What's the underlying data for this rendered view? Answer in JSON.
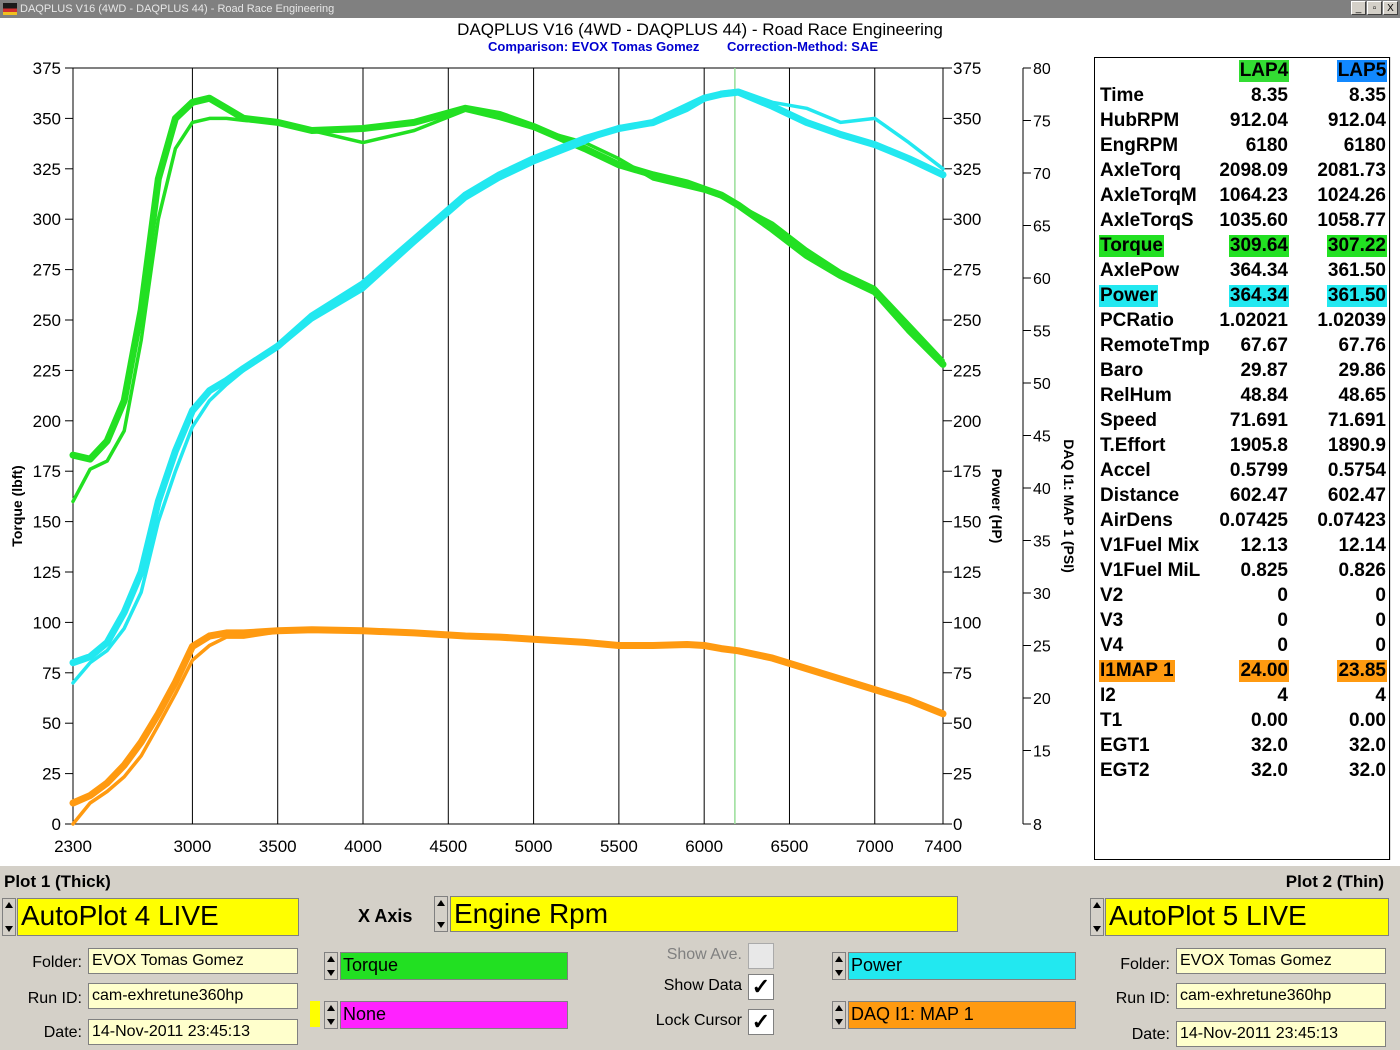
{
  "window": {
    "title": "DAQPLUS V16 (4WD - DAQPLUS 44) - Road Race Engineering",
    "buttons": [
      "_",
      "▫",
      "X"
    ]
  },
  "header": {
    "title": "DAQPLUS V16 (4WD - DAQPLUS 44) - Road Race Engineering",
    "comparison": "Comparison: EVOX Tomas Gomez",
    "correction": "Correction-Method: SAE"
  },
  "colors": {
    "torque": "#22e022",
    "power": "#22e8f0",
    "map": "#ff9a10",
    "none": "#ff22ff",
    "lap4": "#33dd33",
    "lap5": "#1188ff",
    "cursor": "#99dd99",
    "field": "#ffff00"
  },
  "chart_data": {
    "type": "line",
    "x_label": "",
    "xlim": [
      2300,
      7400
    ],
    "x_ticks": [
      2300,
      3000,
      3500,
      4000,
      4500,
      5000,
      5500,
      6000,
      6500,
      7000,
      7400
    ],
    "cursor_x": 6180,
    "left_axis": {
      "label": "Torque (lbft)",
      "range": [
        0,
        375
      ],
      "ticks": [
        0,
        25,
        50,
        75,
        100,
        125,
        150,
        175,
        200,
        225,
        250,
        275,
        300,
        325,
        350,
        375
      ]
    },
    "right_axis": {
      "label": "Power (HP)",
      "range": [
        0,
        375
      ],
      "ticks": [
        0,
        25,
        50,
        75,
        100,
        125,
        150,
        175,
        200,
        225,
        250,
        275,
        300,
        325,
        350,
        375
      ]
    },
    "right_axis2": {
      "label": "DAQ I1: MAP 1 (PSI)",
      "range": [
        8,
        80
      ],
      "ticks": [
        8,
        15,
        20,
        25,
        30,
        35,
        40,
        45,
        50,
        55,
        60,
        65,
        70,
        75,
        80
      ]
    },
    "series": [
      {
        "name": "Torque",
        "run": "AutoPlot 4 LIVE",
        "thickness": "thick",
        "color": "#22e022",
        "axis": "left",
        "x": [
          2300,
          2400,
          2500,
          2600,
          2700,
          2800,
          2900,
          3000,
          3100,
          3200,
          3300,
          3500,
          3700,
          4000,
          4300,
          4600,
          4800,
          5000,
          5300,
          5500,
          5700,
          5900,
          6000,
          6100,
          6200,
          6400,
          6600,
          6800,
          7000,
          7200,
          7400
        ],
        "y": [
          183,
          181,
          190,
          210,
          255,
          320,
          350,
          358,
          360,
          355,
          350,
          348,
          344,
          345,
          348,
          355,
          352,
          346,
          335,
          327,
          322,
          318,
          315,
          312,
          307,
          295,
          282,
          272,
          264,
          245,
          228
        ]
      },
      {
        "name": "Torque",
        "run": "AutoPlot 5 LIVE",
        "thickness": "thin",
        "color": "#22e022",
        "axis": "left",
        "x": [
          2300,
          2400,
          2500,
          2600,
          2700,
          2800,
          2900,
          3000,
          3100,
          3200,
          3300,
          3500,
          3700,
          4000,
          4300,
          4600,
          4800,
          5000,
          5300,
          5500,
          5700,
          5900,
          6000,
          6100,
          6200,
          6400,
          6600,
          6800,
          7000,
          7200,
          7400
        ],
        "y": [
          160,
          176,
          180,
          195,
          240,
          300,
          335,
          348,
          350,
          350,
          349,
          348,
          344,
          338,
          344,
          354,
          350,
          345,
          338,
          330,
          320,
          316,
          314,
          311,
          307,
          298,
          285,
          274,
          266,
          248,
          230
        ]
      },
      {
        "name": "Power",
        "run": "AutoPlot 4 LIVE",
        "thickness": "thick",
        "color": "#22e8f0",
        "axis": "right",
        "x": [
          2300,
          2400,
          2500,
          2600,
          2700,
          2800,
          2900,
          3000,
          3100,
          3200,
          3300,
          3500,
          3700,
          4000,
          4300,
          4600,
          4800,
          5000,
          5300,
          5500,
          5700,
          5900,
          6000,
          6100,
          6200,
          6400,
          6600,
          6800,
          7000,
          7200,
          7400
        ],
        "y": [
          80,
          83,
          90,
          105,
          125,
          160,
          185,
          205,
          215,
          220,
          226,
          237,
          252,
          268,
          290,
          312,
          322,
          330,
          340,
          345,
          348,
          356,
          360,
          362,
          363,
          356,
          348,
          342,
          337,
          330,
          322
        ]
      },
      {
        "name": "Power",
        "run": "AutoPlot 5 LIVE",
        "thickness": "thin",
        "color": "#22e8f0",
        "axis": "right",
        "x": [
          2300,
          2400,
          2500,
          2600,
          2700,
          2800,
          2900,
          3000,
          3100,
          3200,
          3300,
          3500,
          3700,
          4000,
          4300,
          4600,
          4800,
          5000,
          5300,
          5500,
          5700,
          5900,
          6000,
          6100,
          6200,
          6400,
          6600,
          6800,
          7000,
          7200,
          7400
        ],
        "y": [
          70,
          80,
          86,
          97,
          115,
          150,
          175,
          197,
          210,
          218,
          225,
          236,
          250,
          265,
          288,
          310,
          320,
          328,
          338,
          346,
          347,
          354,
          359,
          363,
          364,
          358,
          355,
          348,
          350,
          338,
          325
        ]
      },
      {
        "name": "DAQ I1: MAP 1",
        "run": "AutoPlot 4 LIVE",
        "thickness": "thick",
        "color": "#ff9a10",
        "axis": "right2",
        "x": [
          2300,
          2400,
          2500,
          2600,
          2700,
          2800,
          2900,
          3000,
          3100,
          3200,
          3300,
          3500,
          3700,
          4000,
          4300,
          4600,
          4800,
          5000,
          5300,
          5500,
          5700,
          5900,
          6000,
          6100,
          6200,
          6400,
          6600,
          6800,
          7000,
          7200,
          7400
        ],
        "y": [
          10,
          10.7,
          11.9,
          13.6,
          15.8,
          18.5,
          21.5,
          24.9,
          25.9,
          26.2,
          26.2,
          26.4,
          26.5,
          26.4,
          26.2,
          25.9,
          25.8,
          25.6,
          25.3,
          25.0,
          25.0,
          25.1,
          25.0,
          24.7,
          24.5,
          23.8,
          22.8,
          21.8,
          20.8,
          19.8,
          18.5
        ]
      },
      {
        "name": "DAQ I1: MAP 1",
        "run": "AutoPlot 5 LIVE",
        "thickness": "thin",
        "color": "#ff9a10",
        "axis": "right2",
        "x": [
          2300,
          2400,
          2500,
          2600,
          2700,
          2800,
          2900,
          3000,
          3100,
          3200,
          3300,
          3500,
          3700,
          4000,
          4300,
          4600,
          4800,
          5000,
          5300,
          5500,
          5700,
          5900,
          6000,
          6100,
          6200,
          6400,
          6600,
          6800,
          7000,
          7200,
          7400
        ],
        "y": [
          8,
          10,
          11.1,
          12.5,
          14.5,
          17.4,
          20.4,
          23.6,
          25.0,
          25.8,
          25.8,
          26.3,
          26.5,
          26.4,
          26.2,
          25.9,
          25.8,
          25.6,
          25.3,
          25.0,
          25.0,
          25.1,
          25.0,
          24.7,
          24.5,
          23.8,
          22.8,
          21.8,
          20.8,
          19.8,
          18.6
        ]
      }
    ]
  },
  "data_table": {
    "columns": [
      "LAP4",
      "LAP5"
    ],
    "rows": [
      {
        "label": "Time",
        "v1": "8.35",
        "v2": "8.35"
      },
      {
        "label": "HubRPM",
        "v1": "912.04",
        "v2": "912.04"
      },
      {
        "label": "EngRPM",
        "v1": "6180",
        "v2": "6180"
      },
      {
        "label": "AxleTorq",
        "v1": "2098.09",
        "v2": "2081.73"
      },
      {
        "label": "AxleTorqM",
        "v1": "1064.23",
        "v2": "1024.26"
      },
      {
        "label": "AxleTorqS",
        "v1": "1035.60",
        "v2": "1058.77"
      },
      {
        "label": "Torque",
        "v1": "309.64",
        "v2": "307.22",
        "highlight": "#22e022"
      },
      {
        "label": "AxlePow",
        "v1": "364.34",
        "v2": "361.50"
      },
      {
        "label": "Power",
        "v1": "364.34",
        "v2": "361.50",
        "highlight": "#22e8f0"
      },
      {
        "label": "PCRatio",
        "v1": "1.02021",
        "v2": "1.02039"
      },
      {
        "label": "RemoteTmp",
        "v1": "67.67",
        "v2": "67.76"
      },
      {
        "label": "Baro",
        "v1": "29.87",
        "v2": "29.86"
      },
      {
        "label": "RelHum",
        "v1": "48.84",
        "v2": "48.65"
      },
      {
        "label": "Speed",
        "v1": "71.691",
        "v2": "71.691"
      },
      {
        "label": "T.Effort",
        "v1": "1905.8",
        "v2": "1890.9"
      },
      {
        "label": "Accel",
        "v1": "0.5799",
        "v2": "0.5754"
      },
      {
        "label": "Distance",
        "v1": "602.47",
        "v2": "602.47"
      },
      {
        "label": "AirDens",
        "v1": "0.07425",
        "v2": "0.07423"
      },
      {
        "label": "V1Fuel Mix",
        "v1": "12.13",
        "v2": "12.14"
      },
      {
        "label": "V1Fuel MiL",
        "v1": "0.825",
        "v2": "0.826"
      },
      {
        "label": "V2",
        "v1": "0",
        "v2": "0"
      },
      {
        "label": "V3",
        "v1": "0",
        "v2": "0"
      },
      {
        "label": "V4",
        "v1": "0",
        "v2": "0"
      },
      {
        "label": "I1MAP 1",
        "v1": "24.00",
        "v2": "23.85",
        "highlight": "#ff9a10"
      },
      {
        "label": "I2",
        "v1": "4",
        "v2": "4"
      },
      {
        "label": "T1",
        "v1": "0.00",
        "v2": "0.00"
      },
      {
        "label": "EGT1",
        "v1": "32.0",
        "v2": "32.0"
      },
      {
        "label": "EGT2",
        "v1": "32.0",
        "v2": "32.0"
      }
    ]
  },
  "plot1": {
    "heading": "Plot 1 (Thick)",
    "name": "AutoPlot 4 LIVE",
    "folder_label": "Folder:",
    "folder": "EVOX Tomas Gomez",
    "runid_label": "Run ID:",
    "runid": "cam-exhretune360hp",
    "date_label": "Date:",
    "date": "14-Nov-2011 23:45:13"
  },
  "plot2": {
    "heading": "Plot 2 (Thin)",
    "name": "AutoPlot 5 LIVE",
    "folder_label": "Folder:",
    "folder": "EVOX Tomas Gomez",
    "runid_label": "Run ID:",
    "runid": "cam-exhretune360hp",
    "date_label": "Date:",
    "date": "14-Nov-2011 23:45:13"
  },
  "xaxis_ctrl": {
    "label": "X Axis",
    "value": "Engine Rpm"
  },
  "channels": {
    "left1": "Torque",
    "left2": "None",
    "right1": "Power",
    "right2": "DAQ I1: MAP 1"
  },
  "options": {
    "show_ave": {
      "label": "Show Ave.",
      "checked": false,
      "mark": ""
    },
    "show_data": {
      "label": "Show Data",
      "checked": true,
      "mark": "✓"
    },
    "lock_cursor": {
      "label": "Lock Cursor",
      "checked": true,
      "mark": "✓"
    }
  }
}
